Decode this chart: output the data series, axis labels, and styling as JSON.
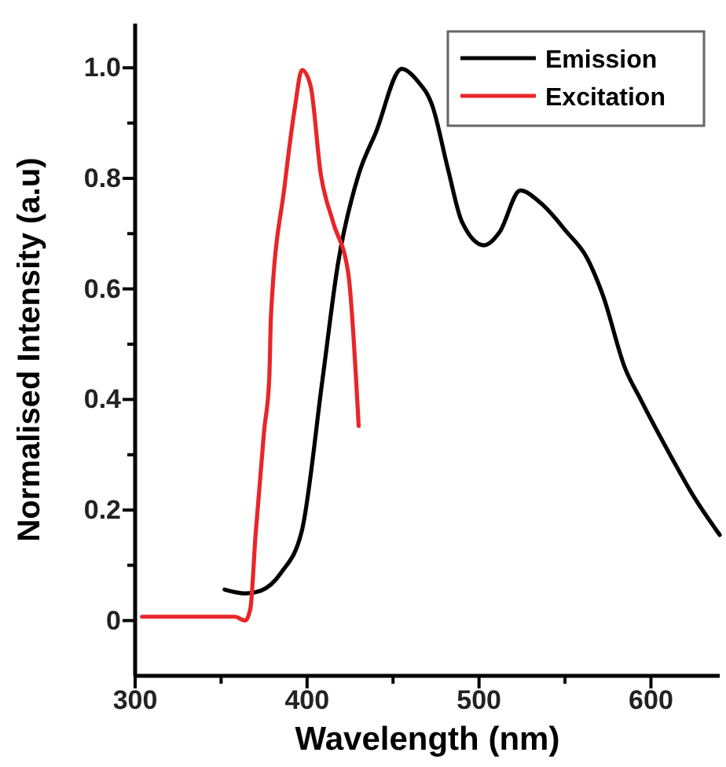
{
  "chart_data": {
    "type": "line",
    "xlabel": "Wavelength (nm)",
    "ylabel": "Normalised Intensity (a.u)",
    "xlim": [
      300,
      640
    ],
    "ylim": [
      -0.1,
      1.08
    ],
    "xticks": [
      300,
      {
        "value": 350,
        "label": null
      },
      400,
      {
        "value": 450,
        "label": null
      },
      500,
      {
        "value": 550,
        "label": null
      },
      600
    ],
    "yticks": [
      0,
      {
        "value": 0.1,
        "label": null
      },
      0.2,
      {
        "value": 0.3,
        "label": null
      },
      0.4,
      {
        "value": 0.5,
        "label": null
      },
      0.6,
      {
        "value": 0.7,
        "label": null
      },
      0.8,
      {
        "value": 0.9,
        "label": null
      },
      {
        "value": 1,
        "label": "1.0"
      }
    ],
    "legend": "top right",
    "grid": false,
    "line_style": "solid",
    "marker": "none",
    "series": [
      {
        "name": "Emission",
        "color": "#000000",
        "x": [
          352,
          364,
          373,
          385,
          397,
          409,
          418,
          430,
          440,
          455,
          464,
          473,
          482,
          490,
          503,
          512,
          524,
          536,
          551,
          563,
          572,
          585,
          594,
          612,
          624,
          640
        ],
        "values": [
          0.056,
          0.049,
          0.054,
          0.087,
          0.163,
          0.437,
          0.646,
          0.807,
          0.883,
          0.998,
          0.977,
          0.93,
          0.816,
          0.722,
          0.679,
          0.703,
          0.778,
          0.755,
          0.703,
          0.655,
          0.589,
          0.456,
          0.4,
          0.295,
          0.229,
          0.155
        ]
      },
      {
        "name": "Excitation",
        "color": "#e8262a",
        "x": [
          304,
          358,
          364,
          367,
          370,
          375,
          378,
          379,
          387,
          393,
          397,
          402,
          408,
          415,
          424,
          430
        ],
        "values": [
          0.007,
          0.007,
          0.0,
          0.021,
          0.153,
          0.343,
          0.437,
          0.551,
          0.788,
          0.93,
          0.996,
          0.968,
          0.807,
          0.722,
          0.627,
          0.352
        ]
      }
    ]
  }
}
